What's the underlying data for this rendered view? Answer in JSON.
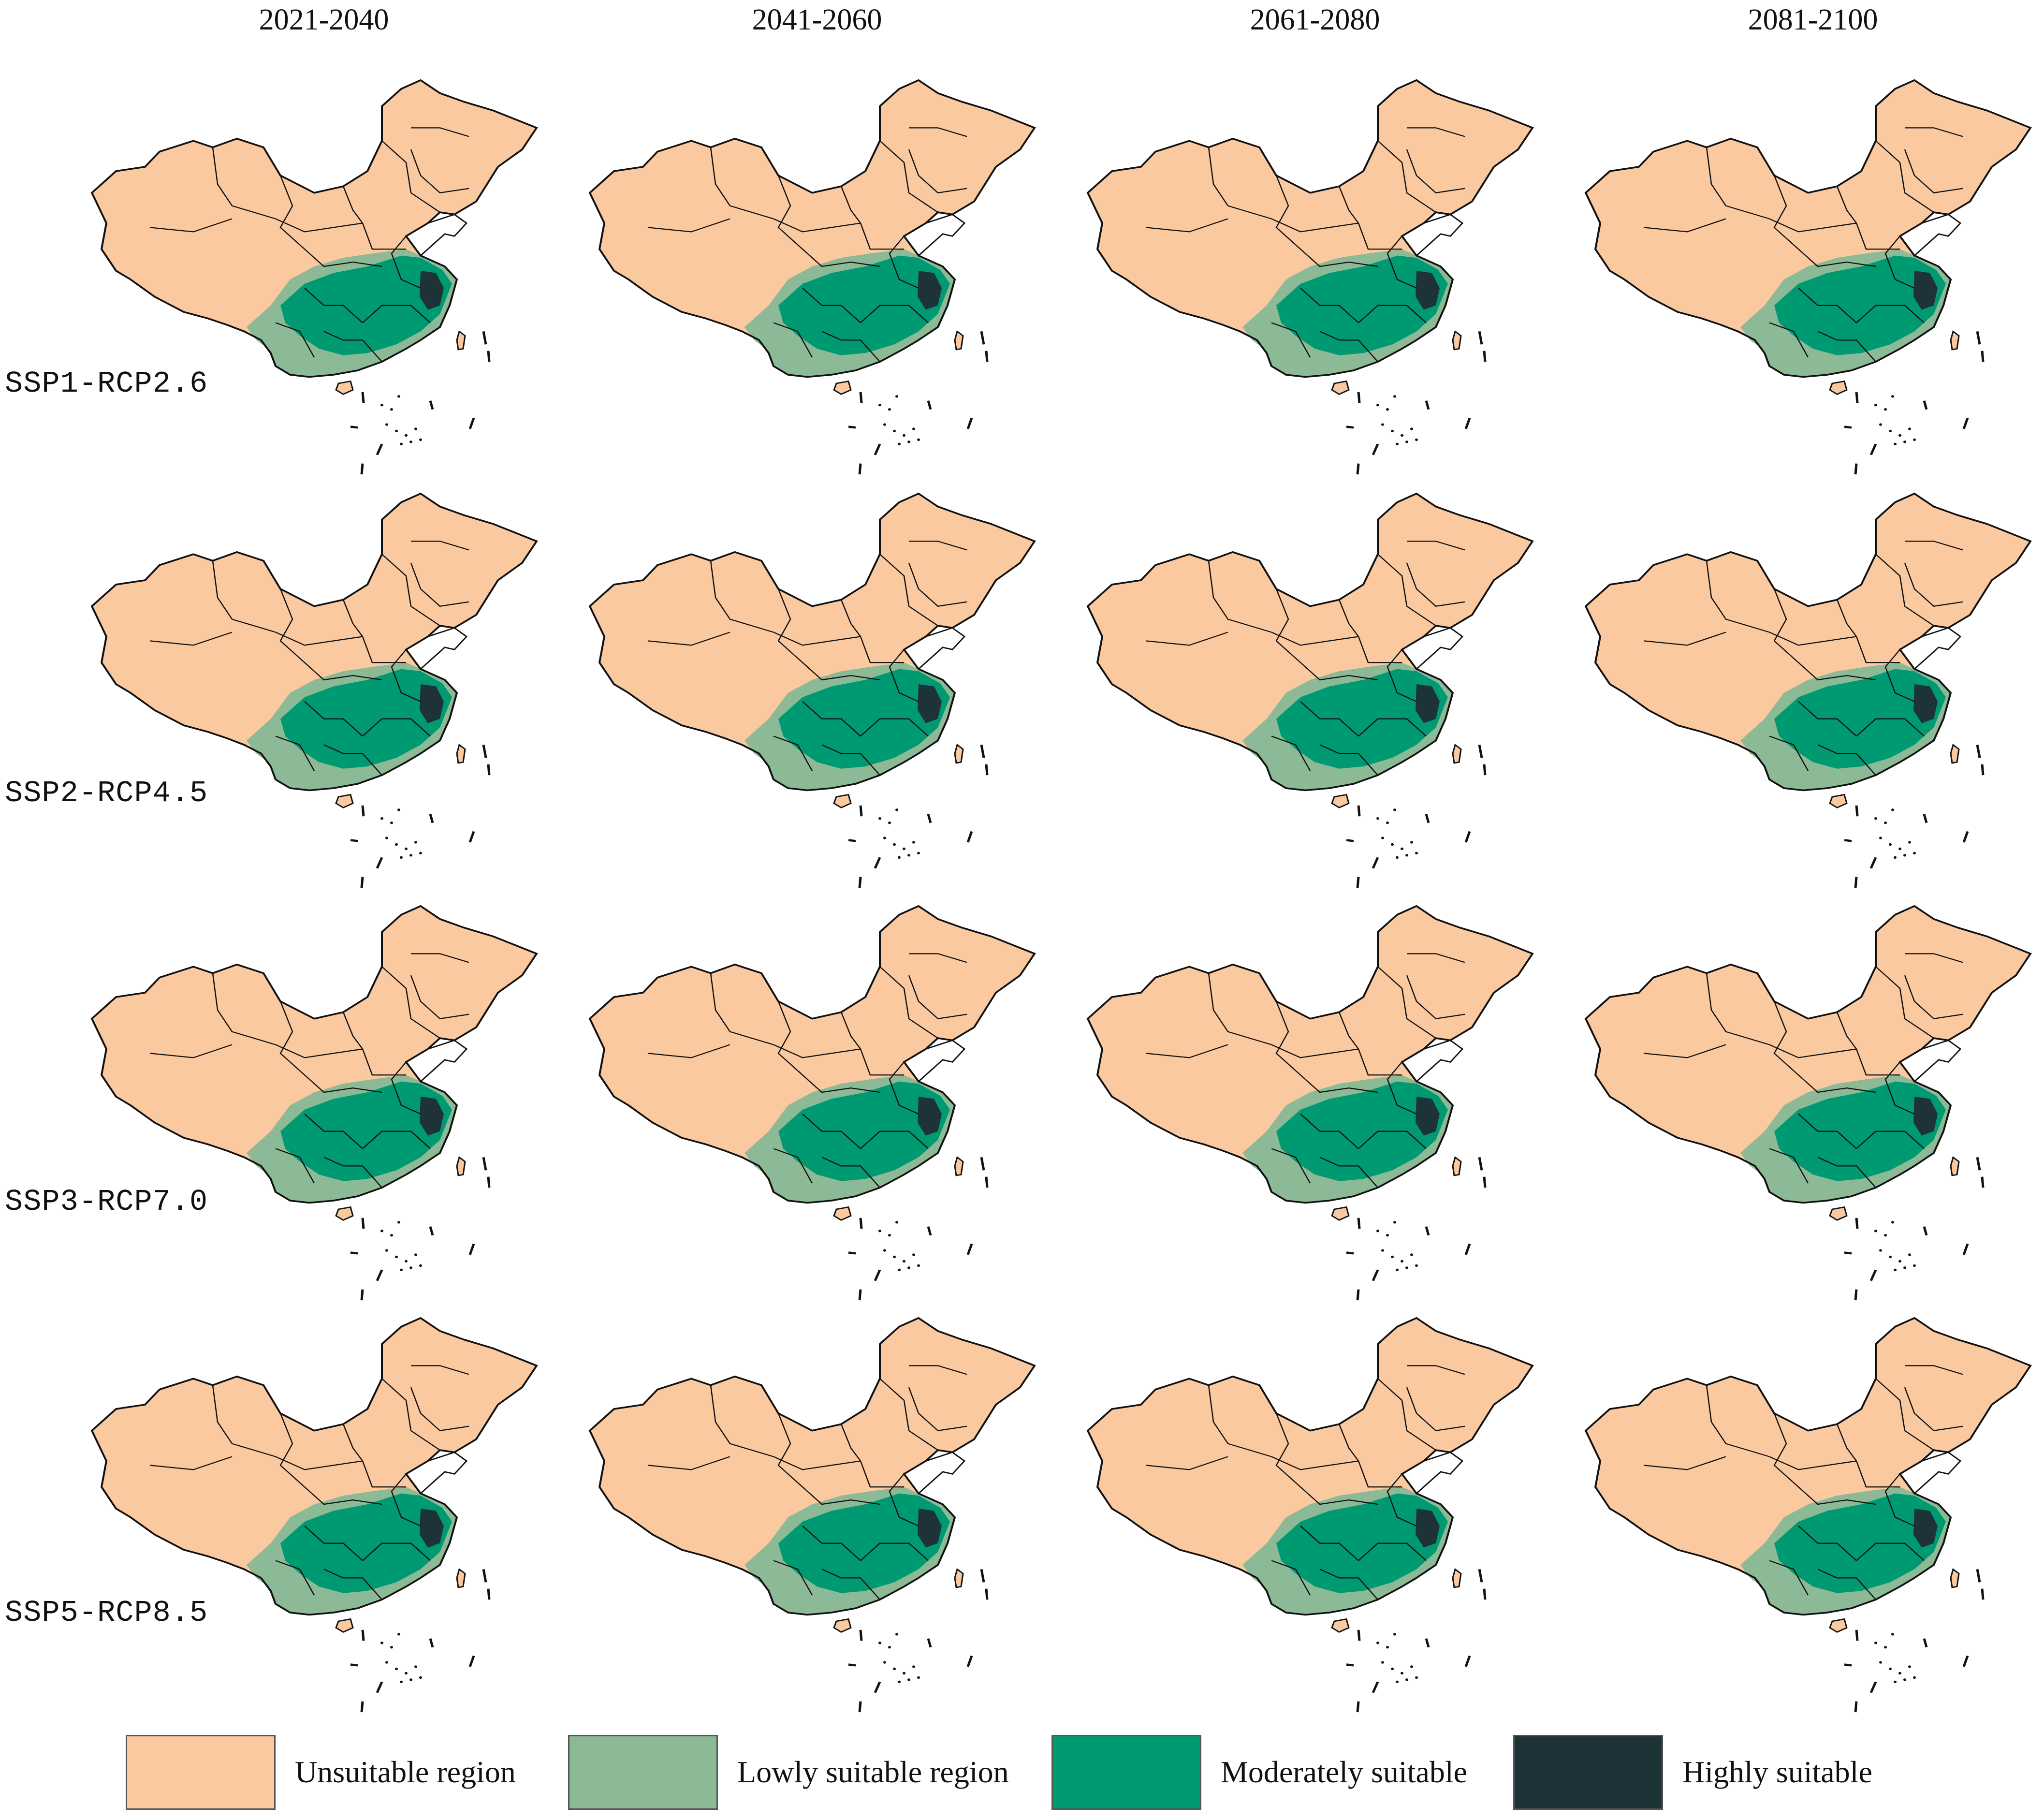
{
  "periods": [
    "2021-2040",
    "2041-2060",
    "2061-2080",
    "2081-2100"
  ],
  "scenarios": [
    "SSP1-RCP2.6",
    "SSP2-RCP4.5",
    "SSP3-RCP7.0",
    "SSP5-RCP8.5"
  ],
  "legend": [
    {
      "label": "Unsuitable region",
      "color": "#FAC9A0"
    },
    {
      "label": "Lowly suitable region",
      "color": "#8CBA96"
    },
    {
      "label": "Moderately suitable",
      "color": "#009A72"
    },
    {
      "label": "Highly suitable",
      "color": "#1E3338"
    }
  ],
  "colors": {
    "boundary": "#111111",
    "unsuitable": "#FAC9A0",
    "low": "#8CBA96",
    "moderate": "#009A72",
    "high": "#1E3338"
  },
  "map_type": "suitability maps of China, 4 scenarios x 4 periods"
}
